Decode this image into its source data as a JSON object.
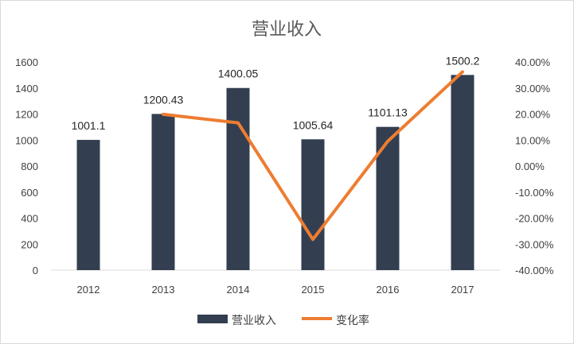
{
  "chart_data": {
    "type": "bar",
    "title": "营业收入",
    "categories": [
      "2012",
      "2013",
      "2014",
      "2015",
      "2016",
      "2017"
    ],
    "series": [
      {
        "name": "营业收入",
        "type": "bar",
        "axis": "left",
        "values": [
          1001.1,
          1200.43,
          1400.05,
          1005.64,
          1101.13,
          1500.2
        ],
        "labels": [
          "1001.1",
          "1200.43",
          "1400.05",
          "1005.64",
          "1101.13",
          "1500.2"
        ],
        "color": "#333F50"
      },
      {
        "name": "变化率",
        "type": "line",
        "axis": "right",
        "values": [
          null,
          19.9,
          16.6,
          -28.2,
          9.5,
          36.2
        ],
        "color": "#ED7D31"
      }
    ],
    "y_left": {
      "ylim": [
        0,
        1600
      ],
      "ticks": [
        0,
        200,
        400,
        600,
        800,
        1000,
        1200,
        1400,
        1600
      ],
      "tick_labels": [
        "0",
        "200",
        "400",
        "600",
        "800",
        "1000",
        "1200",
        "1400",
        "1600"
      ]
    },
    "y_right": {
      "ylim": [
        -40,
        40
      ],
      "ticks": [
        -40,
        -30,
        -20,
        -10,
        0,
        10,
        20,
        30,
        40
      ],
      "tick_labels": [
        "-40.00%",
        "-30.00%",
        "-20.00%",
        "-10.00%",
        "0.00%",
        "10.00%",
        "20.00%",
        "30.00%",
        "40.00%"
      ]
    },
    "grid": false,
    "legend": "bottom"
  }
}
